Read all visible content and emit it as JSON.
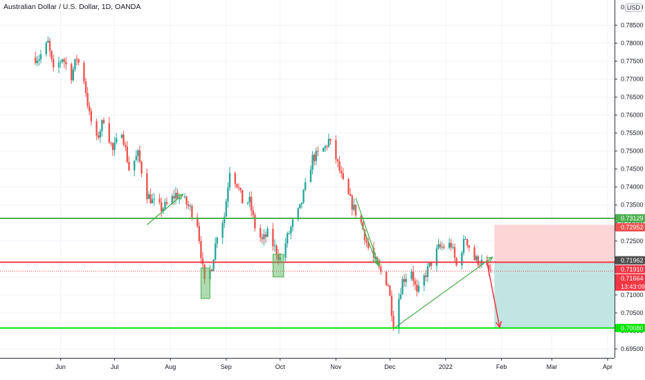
{
  "header": {
    "title": "Australian Dollar / U.S. Dollar, 1D, OANDA",
    "currency_button": "USD"
  },
  "colors": {
    "up": "#26a69a",
    "down": "#ef5350",
    "green_line": "#4caf50",
    "bright_green_line": "#00e600",
    "red_line": "#f23645",
    "profit_zone": "#b2dfdb",
    "loss_zone": "#fccbcd",
    "last_price": "#f23645",
    "prev_close": "#505050"
  },
  "chart_data": {
    "type": "candlestick",
    "symbol": "AUDUSD",
    "timeframe": "1D",
    "exchange": "OANDA",
    "x_tick_labels": [
      "Jun",
      "Jul",
      "Aug",
      "Sep",
      "Oct",
      "Nov",
      "Dec",
      "2022",
      "Feb",
      "Mar",
      "Apr"
    ],
    "y_tick_labels": [
      "0.69500",
      "0.70000",
      "0.70500",
      "0.71000",
      "0.71500",
      "0.72000",
      "0.72500",
      "0.73000",
      "0.73500",
      "0.74000",
      "0.74500",
      "0.75000",
      "0.75500",
      "0.76000",
      "0.76500",
      "0.77000",
      "0.77500",
      "0.78000",
      "0.78500"
    ],
    "y_top_partial_label": "0.79000",
    "ylim": [
      0.6925,
      0.792
    ],
    "path_points": [
      [
        "2021-05-20",
        0.776
      ],
      [
        "2021-05-25",
        0.78
      ],
      [
        "2021-05-28",
        0.772
      ],
      [
        "2021-06-02",
        0.776
      ],
      [
        "2021-06-07",
        0.771
      ],
      [
        "2021-06-10",
        0.776
      ],
      [
        "2021-06-14",
        0.77
      ],
      [
        "2021-06-17",
        0.76
      ],
      [
        "2021-06-21",
        0.753
      ],
      [
        "2021-06-25",
        0.759
      ],
      [
        "2021-06-30",
        0.75
      ],
      [
        "2021-07-05",
        0.756
      ],
      [
        "2021-07-09",
        0.745
      ],
      [
        "2021-07-14",
        0.749
      ],
      [
        "2021-07-19",
        0.738
      ],
      [
        "2021-07-22",
        0.736
      ],
      [
        "2021-07-27",
        0.734
      ],
      [
        "2021-07-30",
        0.735
      ],
      [
        "2021-08-04",
        0.738
      ],
      [
        "2021-08-09",
        0.736
      ],
      [
        "2021-08-12",
        0.734
      ],
      [
        "2021-08-16",
        0.73
      ],
      [
        "2021-08-20",
        0.713
      ],
      [
        "2021-08-24",
        0.718
      ],
      [
        "2021-08-27",
        0.727
      ],
      [
        "2021-08-31",
        0.732
      ],
      [
        "2021-09-03",
        0.745
      ],
      [
        "2021-09-07",
        0.741
      ],
      [
        "2021-09-10",
        0.736
      ],
      [
        "2021-09-14",
        0.736
      ],
      [
        "2021-09-17",
        0.729
      ],
      [
        "2021-09-21",
        0.725
      ],
      [
        "2021-09-24",
        0.727
      ],
      [
        "2021-09-28",
        0.723
      ],
      [
        "2021-10-01",
        0.72
      ],
      [
        "2021-10-05",
        0.726
      ],
      [
        "2021-10-08",
        0.73
      ],
      [
        "2021-10-12",
        0.734
      ],
      [
        "2021-10-15",
        0.74
      ],
      [
        "2021-10-19",
        0.748
      ],
      [
        "2021-10-22",
        0.749
      ],
      [
        "2021-10-26",
        0.751
      ],
      [
        "2021-10-28",
        0.753
      ],
      [
        "2021-11-01",
        0.748
      ],
      [
        "2021-11-05",
        0.741
      ],
      [
        "2021-11-10",
        0.735
      ],
      [
        "2021-11-15",
        0.73
      ],
      [
        "2021-11-19",
        0.723
      ],
      [
        "2021-11-24",
        0.718
      ],
      [
        "2021-11-30",
        0.713
      ],
      [
        "2021-12-03",
        0.702
      ],
      [
        "2021-12-08",
        0.714
      ],
      [
        "2021-12-13",
        0.717
      ],
      [
        "2021-12-16",
        0.71
      ],
      [
        "2021-12-21",
        0.716
      ],
      [
        "2021-12-28",
        0.723
      ],
      [
        "2022-01-04",
        0.724
      ],
      [
        "2022-01-07",
        0.718
      ],
      [
        "2022-01-12",
        0.726
      ],
      [
        "2022-01-17",
        0.72
      ],
      [
        "2022-01-21",
        0.719
      ],
      [
        "2022-01-26",
        0.716
      ]
    ],
    "horizontal_lines": [
      {
        "value": 0.73129,
        "color": "green"
      },
      {
        "value": 0.7191,
        "color": "red"
      },
      {
        "value": 0.7008,
        "color": "bright_green"
      }
    ],
    "highlight_boxes": [
      {
        "from": "2021-08-18",
        "to": "2021-08-23",
        "low": 0.709,
        "high": 0.7175
      },
      {
        "from": "2021-09-27",
        "to": "2021-10-03",
        "low": 0.715,
        "high": 0.7213
      }
    ],
    "trend_arrows": [
      {
        "from": [
          "2021-07-19",
          0.7295
        ],
        "to": [
          "2021-08-08",
          0.738
        ],
        "color": "green"
      },
      {
        "from": [
          "2021-11-12",
          0.737
        ],
        "to": [
          "2021-11-25",
          0.718
        ],
        "color": "green"
      },
      {
        "from": [
          "2021-11-15",
          0.73
        ],
        "to": [
          "2021-11-24",
          0.7185
        ],
        "color": "green"
      },
      {
        "from": [
          "2021-12-04",
          0.701
        ],
        "to": [
          "2022-01-27",
          0.7205
        ],
        "color": "green"
      }
    ],
    "projection_arrow": {
      "from": [
        "2022-01-24",
        0.719
      ],
      "to": [
        "2022-01-31",
        0.701
      ],
      "color": "red"
    },
    "position": {
      "from": "2022-01-28",
      "to": "2022-05-08",
      "entry": 0.719,
      "stop": 0.72952,
      "target": 0.7008
    },
    "price_labels": [
      {
        "text": "0.73129",
        "value": 0.73129,
        "color": "green_line"
      },
      {
        "text": "0.72952",
        "value": 0.72952,
        "color": "down"
      },
      {
        "text": "0.71962",
        "value": 0.71962,
        "color": "prev_close"
      },
      {
        "text": "0.71910",
        "value": 0.7191,
        "color": "red_line"
      },
      {
        "text": "0.71664",
        "value": 0.71664,
        "color": "last_price",
        "sub": "13:43:09"
      },
      {
        "text": "0.70080",
        "value": 0.7008,
        "color": "bright_green_line"
      }
    ],
    "last_price": 0.71664,
    "countdown": "13:43:09"
  }
}
